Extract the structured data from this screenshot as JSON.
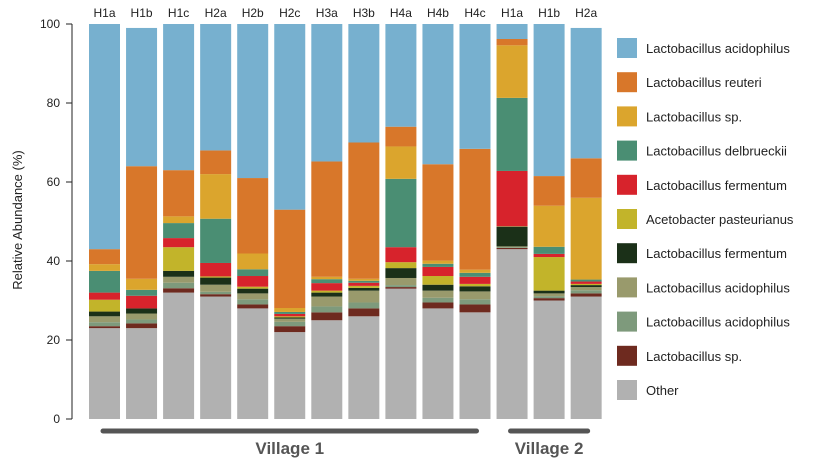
{
  "chart_data": {
    "type": "bar",
    "stacked": true,
    "ylabel": "Relative Abundance (%)",
    "ylim": [
      0,
      100
    ],
    "yticks": [
      0,
      20,
      40,
      60,
      80,
      100
    ],
    "categories": [
      "H1a",
      "H1b",
      "H1c",
      "H2a",
      "H2b",
      "H2c",
      "H3a",
      "H3b",
      "H4a",
      "H4b",
      "H4c",
      "H1a",
      "H1b",
      "H2a"
    ],
    "groups": [
      {
        "label": "Village 1",
        "start": 0,
        "end": 10
      },
      {
        "label": "Village 2",
        "start": 11,
        "end": 13
      }
    ],
    "legend_position": "right",
    "series": [
      {
        "name": "Other",
        "color": "#b1b1b1",
        "values": [
          23,
          23,
          32,
          31,
          28,
          22,
          25,
          26,
          33,
          28,
          27,
          43,
          30,
          31
        ]
      },
      {
        "name": "Lactobacillus sp.",
        "color": "#6e2a1f",
        "values": [
          0.5,
          1.2,
          1.1,
          0.6,
          1.0,
          1.5,
          2.0,
          2.0,
          0.4,
          1.5,
          2.0,
          0.3,
          0.6,
          0.8
        ]
      },
      {
        "name": "Lactobacillus acidophilus",
        "color": "#7e9a7c",
        "values": [
          1.0,
          1.0,
          1.4,
          0.6,
          1.3,
          1.1,
          1.5,
          1.5,
          0.5,
          1.2,
          1.3,
          0.2,
          0.5,
          0.8
        ]
      },
      {
        "name": "Lactobacillus acidophilus",
        "color": "#999a6c",
        "values": [
          1.5,
          1.5,
          1.5,
          1.8,
          1.5,
          0.8,
          2.5,
          3.0,
          1.8,
          1.8,
          2.0,
          0.2,
          0.7,
          0.8
        ]
      },
      {
        "name": "Lactobacillus fermentum",
        "color": "#1b3018",
        "values": [
          1.2,
          1.3,
          1.5,
          1.8,
          1.2,
          0.3,
          1.0,
          0.7,
          2.5,
          1.5,
          1.3,
          5.0,
          0.7,
          0.5
        ]
      },
      {
        "name": "Acetobacter pasteurianus",
        "color": "#c2b42a",
        "values": [
          3.0,
          0.0,
          6.0,
          0.3,
          0.5,
          0.3,
          0.5,
          0.5,
          1.5,
          2.2,
          0.6,
          0.1,
          8.5,
          0.3
        ]
      },
      {
        "name": "Lactobacillus fermentum",
        "color": "#d7232c",
        "values": [
          1.8,
          3.2,
          2.3,
          3.4,
          2.7,
          0.6,
          1.9,
          0.8,
          3.8,
          2.3,
          1.8,
          14.0,
          0.8,
          0.6
        ]
      },
      {
        "name": "Lactobacillus delbrueckii",
        "color": "#4a8e73",
        "values": [
          5.5,
          1.5,
          3.8,
          11.2,
          1.7,
          0.5,
          1.0,
          0.5,
          17.3,
          0.8,
          1.0,
          18.5,
          1.8,
          0.5
        ]
      },
      {
        "name": "Lactobacillus sp.",
        "color": "#dba52d",
        "values": [
          1.7,
          2.8,
          1.7,
          11.3,
          4.0,
          1.0,
          0.6,
          0.5,
          8.2,
          0.8,
          0.8,
          13.3,
          10.4,
          20.7
        ]
      },
      {
        "name": "Lactobacillus reuteri",
        "color": "#d8772a",
        "values": [
          3.8,
          28.5,
          11.7,
          6.0,
          19.1,
          24.9,
          29.2,
          34.5,
          5.0,
          24.4,
          30.6,
          1.6,
          7.5,
          10.0
        ]
      },
      {
        "name": "Lactobacillus acidophilus",
        "color": "#77b0cf",
        "values": [
          57.0,
          35.0,
          37.0,
          32.0,
          39.0,
          47.0,
          34.8,
          30.0,
          26.0,
          35.5,
          31.6,
          3.8,
          38.5,
          33.0
        ]
      }
    ],
    "legend": [
      {
        "label": "Lactobacillus acidophilus",
        "color": "#77b0cf"
      },
      {
        "label": "Lactobacillus reuteri",
        "color": "#d8772a"
      },
      {
        "label": "Lactobacillus sp.",
        "color": "#dba52d"
      },
      {
        "label": "Lactobacillus delbrueckii",
        "color": "#4a8e73"
      },
      {
        "label": "Lactobacillus fermentum",
        "color": "#d7232c"
      },
      {
        "label": "Acetobacter pasteurianus",
        "color": "#c2b42a"
      },
      {
        "label": "Lactobacillus fermentum",
        "color": "#1b3018"
      },
      {
        "label": "Lactobacillus acidophilus",
        "color": "#999a6c"
      },
      {
        "label": "Lactobacillus acidophilus",
        "color": "#7e9a7c"
      },
      {
        "label": "Lactobacillus sp.",
        "color": "#6e2a1f"
      },
      {
        "label": "Other",
        "color": "#b1b1b1"
      }
    ]
  }
}
